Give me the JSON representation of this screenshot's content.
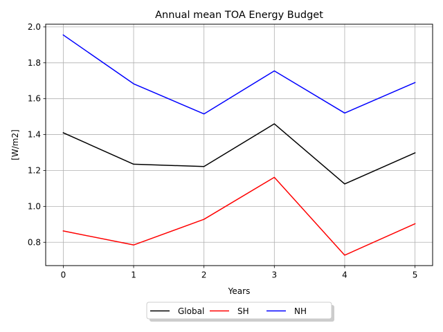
{
  "chart_data": {
    "type": "line",
    "title": "Annual mean TOA Energy Budget",
    "xlabel": "Years",
    "ylabel": "[W/m2]",
    "x": [
      0,
      1,
      2,
      3,
      4,
      5
    ],
    "xticks": [
      "0",
      "1",
      "2",
      "3",
      "4",
      "5"
    ],
    "yticks": [
      "0.8",
      "1.0",
      "1.2",
      "1.4",
      "1.6",
      "1.8",
      "2.0"
    ],
    "xlim": [
      -0.25,
      5.25
    ],
    "ylim": [
      0.67,
      2.015
    ],
    "grid": true,
    "legend_position": "bottom-center",
    "series": [
      {
        "name": "Global",
        "color": "#000000",
        "values": [
          1.41,
          1.235,
          1.222,
          1.46,
          1.125,
          1.298
        ]
      },
      {
        "name": "SH",
        "color": "#ff0000",
        "values": [
          0.863,
          0.785,
          0.928,
          1.162,
          0.728,
          0.903
        ]
      },
      {
        "name": "NH",
        "color": "#0000ff",
        "values": [
          1.955,
          1.683,
          1.515,
          1.755,
          1.52,
          1.69
        ]
      }
    ]
  }
}
